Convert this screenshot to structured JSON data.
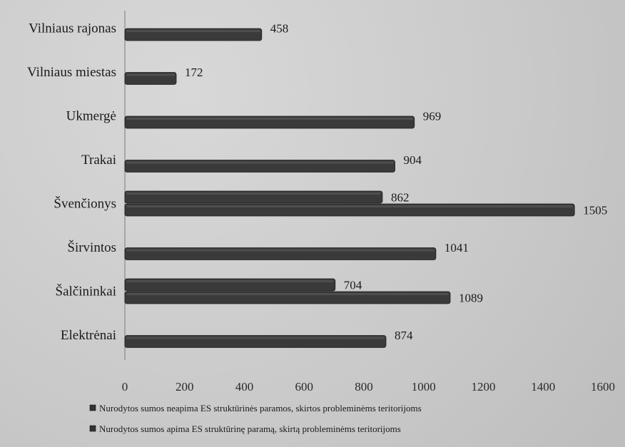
{
  "chart_data": {
    "type": "bar",
    "orientation": "horizontal",
    "categories": [
      "Vilniaus rajonas",
      "Vilniaus miestas",
      "Ukmergė",
      "Trakai",
      "Švenčionys",
      "Širvintos",
      "Šalčininkai",
      "Elektrėnai"
    ],
    "series": [
      {
        "name": "Nurodytos sumos neapima ES struktūrinės paramos, skirtos probleminėms teritorijoms",
        "values": [
          null,
          null,
          null,
          null,
          862,
          null,
          704,
          null
        ],
        "color": "#3a3a3a"
      },
      {
        "name": "Nurodytos sumos apima ES struktūrinę paramą, skirtą probleminėms teritorijoms",
        "values": [
          458,
          172,
          969,
          904,
          1505,
          1041,
          1089,
          874
        ],
        "color": "#3a3a3a"
      }
    ],
    "data_labels": [
      [
        "",
        "458"
      ],
      [
        "",
        "172"
      ],
      [
        "",
        "969"
      ],
      [
        "",
        "904"
      ],
      [
        "862",
        "1505"
      ],
      [
        "",
        "1041"
      ],
      [
        "704",
        "1089"
      ],
      [
        "",
        "874"
      ]
    ],
    "xticks": [
      "0",
      "200",
      "400",
      "600",
      "800",
      "1000",
      "1200",
      "1400",
      "1600"
    ],
    "xlim": [
      0,
      1600
    ],
    "grid": false,
    "legend_position": "bottom"
  }
}
